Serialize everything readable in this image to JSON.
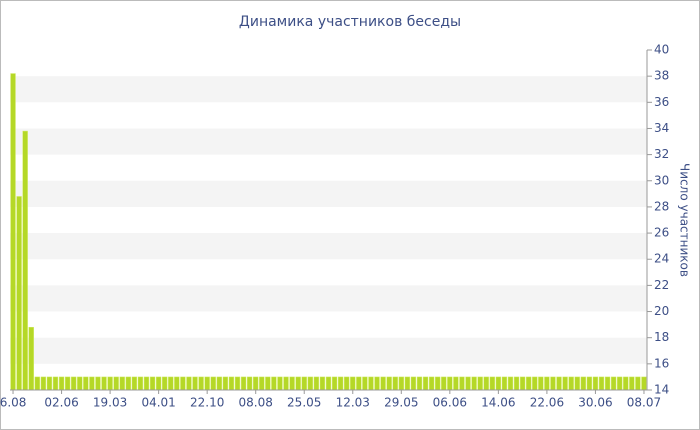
{
  "chart_data": {
    "type": "bar",
    "title": "Динамика участников беседы",
    "y_axis_label": "Число участников",
    "categories": [
      "6.08",
      null,
      null,
      null,
      null,
      null,
      null,
      null,
      "02.06",
      null,
      null,
      null,
      null,
      null,
      null,
      null,
      "19.03",
      null,
      null,
      null,
      null,
      null,
      null,
      null,
      "04.01",
      null,
      null,
      null,
      null,
      null,
      null,
      null,
      "22.10",
      null,
      null,
      null,
      null,
      null,
      null,
      null,
      "08.08",
      null,
      null,
      null,
      null,
      null,
      null,
      null,
      "25.05",
      null,
      null,
      null,
      null,
      null,
      null,
      null,
      "12.03",
      null,
      null,
      null,
      null,
      null,
      null,
      null,
      "29.05",
      null,
      null,
      null,
      null,
      null,
      null,
      null,
      "06.06",
      null,
      null,
      null,
      null,
      null,
      null,
      null,
      "14.06",
      null,
      null,
      null,
      null,
      null,
      null,
      null,
      "22.06",
      null,
      null,
      null,
      null,
      null,
      null,
      null,
      "30.06",
      null,
      null,
      null,
      null,
      null,
      null,
      null,
      "08.07"
    ],
    "values": [
      38.2,
      28.8,
      33.8,
      18.8,
      15,
      15,
      15,
      15,
      15,
      15,
      15,
      15,
      15,
      15,
      15,
      15,
      15,
      15,
      15,
      15,
      15,
      15,
      15,
      15,
      15,
      15,
      15,
      15,
      15,
      15,
      15,
      15,
      15,
      15,
      15,
      15,
      15,
      15,
      15,
      15,
      15,
      15,
      15,
      15,
      15,
      15,
      15,
      15,
      15,
      15,
      15,
      15,
      15,
      15,
      15,
      15,
      15,
      15,
      15,
      15,
      15,
      15,
      15,
      15,
      15,
      15,
      15,
      15,
      15,
      15,
      15,
      15,
      15,
      15,
      15,
      15,
      15,
      15,
      15,
      15,
      15,
      15,
      15,
      15,
      15,
      15,
      15,
      15,
      15,
      15,
      15,
      15,
      15,
      15,
      15,
      15,
      15,
      15,
      15,
      15,
      15,
      15,
      15,
      15,
      15
    ],
    "color": "#b5d827",
    "ylim": [
      14,
      40
    ],
    "yticks": [
      14,
      16,
      18,
      20,
      22,
      24,
      26,
      28,
      30,
      32,
      34,
      36,
      38,
      40
    ],
    "grid": true,
    "y_axis_side": "right"
  }
}
